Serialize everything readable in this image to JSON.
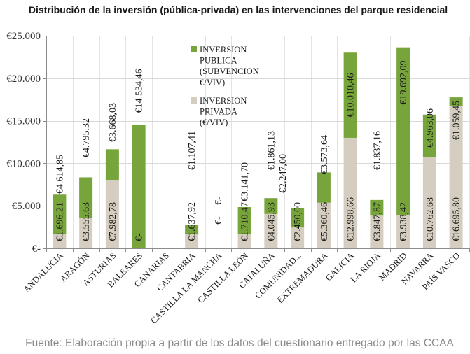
{
  "source": "Fuente: Elaboración propia a partir de los datos del cuestionario entregado por las CCAA",
  "chart_data": {
    "type": "bar",
    "stacked": true,
    "title": "Distribución de la inversión (pública-privada) en las intervenciones del parque residencial",
    "xlabel": "",
    "ylabel": "",
    "categories": [
      "ANDALUCIA",
      "ARAGÓN",
      "ASTURIAS",
      "BALEARES",
      "CANARIAS",
      "CANTABRIA",
      "CASTILLA LA MANCHA",
      "CASTILLA LEÓN",
      "CATALUÑA",
      "COMUNIDAD...",
      "EXTREMADURA",
      "GALICIA",
      "LA RIOJA",
      "MADRID",
      "NAVARRA",
      "PAÍS VASCO"
    ],
    "series": [
      {
        "name": "INVERSION PUBLICA (SUBVENCION €/VIV)",
        "color": "#78a53b",
        "values": [
          4614.85,
          4795.32,
          3668.03,
          14534.46,
          null,
          1107.41,
          0,
          3141.7,
          1861.13,
          2247.0,
          3573.64,
          10010.46,
          1837.16,
          19692.09,
          4963.06,
          1059.45
        ],
        "data_labels": [
          "€4.614,85",
          "€4.795,32",
          "€3.668,03",
          "€14.534,46",
          null,
          "€1.107,41",
          "€-",
          "€3.141,70",
          "€1.861,13",
          "€2.247,00",
          "€3.573,64",
          "€10.010,46",
          "€1.837,16",
          "€19.692,09",
          "€4.963,06",
          "€1.059,45"
        ]
      },
      {
        "name": "INVERSION PRIVADA (€/VIV)",
        "color": "#d5cec0",
        "values": [
          1696.21,
          3555.63,
          7982.78,
          0,
          null,
          1637.92,
          0,
          1710.47,
          4045.93,
          2450.0,
          5360.46,
          12998.66,
          3847.87,
          3938.42,
          10762.68,
          16695.8
        ],
        "data_labels": [
          "€1.696,21",
          "€3.555,63",
          "€7.982,78",
          "€-",
          null,
          "€1.637,92",
          "€-",
          "€1.710,47",
          "€4.045,93",
          "€2.450,00",
          "€5.360,46",
          "€12.998,66",
          "€3.847,87",
          "€3.938,42",
          "€10.762,68",
          "€16.695,80"
        ]
      }
    ],
    "yticks": [
      0,
      5000,
      10000,
      15000,
      20000,
      25000
    ],
    "ytick_labels": [
      "€-",
      "€5.000",
      "€10.000",
      "€15.000",
      "€20.000",
      "€25.000"
    ],
    "ylim": [
      0,
      25000
    ],
    "grid": true,
    "legend": "inside-top-center"
  }
}
